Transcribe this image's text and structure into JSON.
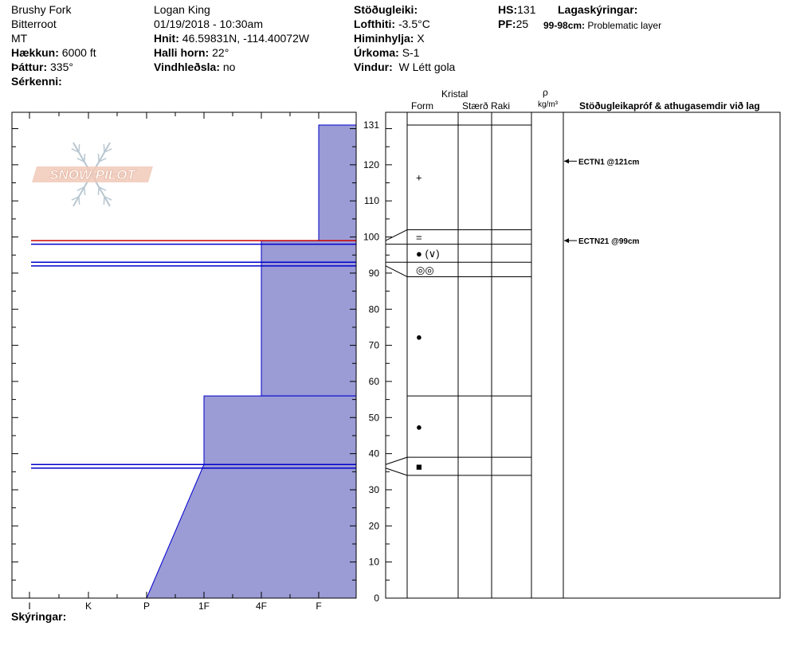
{
  "header": {
    "location": "Brushy Fork",
    "range": "Bitterroot",
    "state": "MT",
    "elevation_label": "Hækkun:",
    "elevation_value": "6000 ft",
    "aspect_label": "Þáttur:",
    "aspect_value": "335°",
    "features_label": "Sérkenni:",
    "observer": "Logan King",
    "datetime": "01/19/2018 - 10:30am",
    "coords_label": "Hnit:",
    "coords_value": "46.59831N, -114.40072W",
    "slope_label": "Halli horn:",
    "slope_value": "22°",
    "wind_loading_label": "Vindhleðsla:",
    "wind_loading_value": "no",
    "stability_label": "Stöðugleiki:",
    "air_temp_label": "Lofthiti:",
    "air_temp_value": "-3.5°C",
    "sky_label": "Himinhylja:",
    "sky_value": "X",
    "precip_label": "Úrkoma:",
    "precip_value": "S-1",
    "wind_label": "Vindur:",
    "wind_value": "W Létt gola",
    "hs_label": "HS:",
    "hs_value": "131",
    "pf_label": "PF:",
    "pf_value": "25",
    "legend_label": "Lagaskýringar:",
    "legend_range": "99-98cm:",
    "legend_text": "Problematic layer"
  },
  "columns": {
    "crystal": "Kristal",
    "form": "Form",
    "size": "Stærð",
    "moisture": "Raki",
    "rho": "ρ",
    "density_unit": "kg/m³",
    "stability_notes": "Stöðugleikapróf & athugasemdir við lag"
  },
  "footer": {
    "notes_label": "Skýringar:"
  },
  "logo": {
    "text": "SNOW PILOT"
  },
  "colors": {
    "fill": "#9b9bd6",
    "blue_line": "#0000cc",
    "red_line": "#cc0000"
  },
  "chart_data": {
    "type": "snow-profile",
    "y_ticks": [
      131,
      120,
      110,
      100,
      90,
      80,
      70,
      60,
      50,
      40,
      30,
      20,
      10,
      0
    ],
    "y_range": [
      0,
      131
    ],
    "hardness_labels": [
      "I",
      "K",
      "P",
      "1F",
      "4F",
      "F"
    ],
    "hardness_profile": [
      {
        "top": 131,
        "bottom": 99,
        "hardness": "F"
      },
      {
        "top": 99,
        "bottom": 56,
        "hardness": "4F"
      },
      {
        "top": 56,
        "bottom": 37,
        "hardness": "1F"
      },
      {
        "top": 37,
        "bottom": 0,
        "hardness_top": "1F",
        "hardness_bottom": "P"
      }
    ],
    "highlight_lines": [
      {
        "depth": 99,
        "color": "red"
      },
      {
        "depth": 98,
        "color": "blue"
      },
      {
        "depth": 93,
        "color": "blue"
      },
      {
        "depth": 92,
        "color": "blue"
      },
      {
        "depth": 37,
        "color": "blue"
      },
      {
        "depth": 36,
        "color": "blue"
      }
    ],
    "layers": [
      {
        "top": 131,
        "bottom": 102,
        "form": "+"
      },
      {
        "top": 102,
        "bottom": 98,
        "form": "="
      },
      {
        "top": 98,
        "bottom": 93,
        "form": "● (∨)"
      },
      {
        "top": 93,
        "bottom": 89,
        "form": "◎◎"
      },
      {
        "top": 89,
        "bottom": 56,
        "form": "●"
      },
      {
        "top": 56,
        "bottom": 39,
        "form": "●"
      },
      {
        "top": 39,
        "bottom": 34,
        "form": "■"
      },
      {
        "top": 34,
        "bottom": 0,
        "form": ""
      }
    ],
    "tests": [
      {
        "text": "ECTN1 @121cm",
        "depth": 121
      },
      {
        "text": "ECTN21 @99cm",
        "depth": 99
      }
    ]
  }
}
